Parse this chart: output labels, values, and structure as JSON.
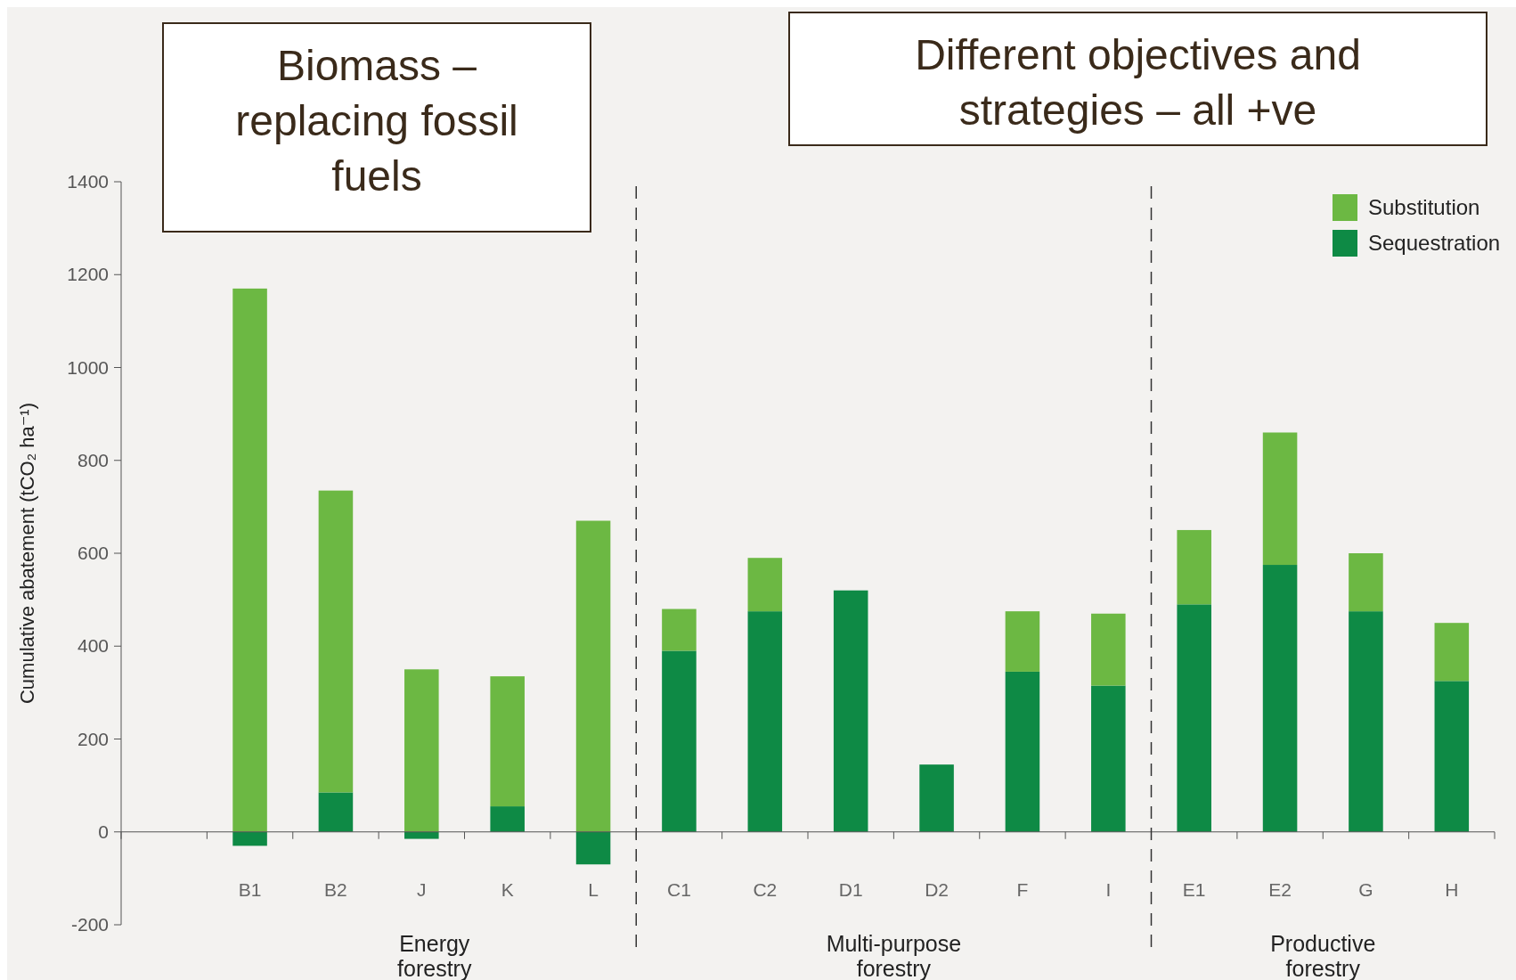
{
  "chart_data": {
    "type": "bar",
    "stacked": true,
    "ylabel": "Cumulative abatement (tCO₂ ha⁻¹)",
    "categories": [
      null,
      "B1",
      "B2",
      "J",
      "K",
      "L",
      "C1",
      "C2",
      "D1",
      "D2",
      "F",
      "I",
      "E1",
      "E2",
      "G",
      "H"
    ],
    "series": [
      {
        "name": "Sequestration",
        "color": "#0e8a45",
        "values": [
          null,
          -30,
          85,
          -15,
          55,
          -70,
          390,
          475,
          520,
          145,
          345,
          315,
          490,
          575,
          475,
          325
        ]
      },
      {
        "name": "Substitution",
        "color": "#6cb843",
        "values": [
          null,
          1170,
          650,
          350,
          280,
          670,
          90,
          115,
          0,
          0,
          130,
          155,
          160,
          285,
          125,
          125
        ]
      }
    ],
    "ylim": [
      -200,
      1400
    ],
    "yticks": [
      -200,
      0,
      200,
      400,
      600,
      800,
      1000,
      1200,
      1400
    ],
    "grid": false,
    "legend": "top right",
    "annotations": [
      "Biomass – replacing fossil fuels",
      "Different objectives and strategies – all +ve",
      "Energy forestry",
      "Multi-purpose forestry",
      "Productive forestry"
    ]
  }
}
